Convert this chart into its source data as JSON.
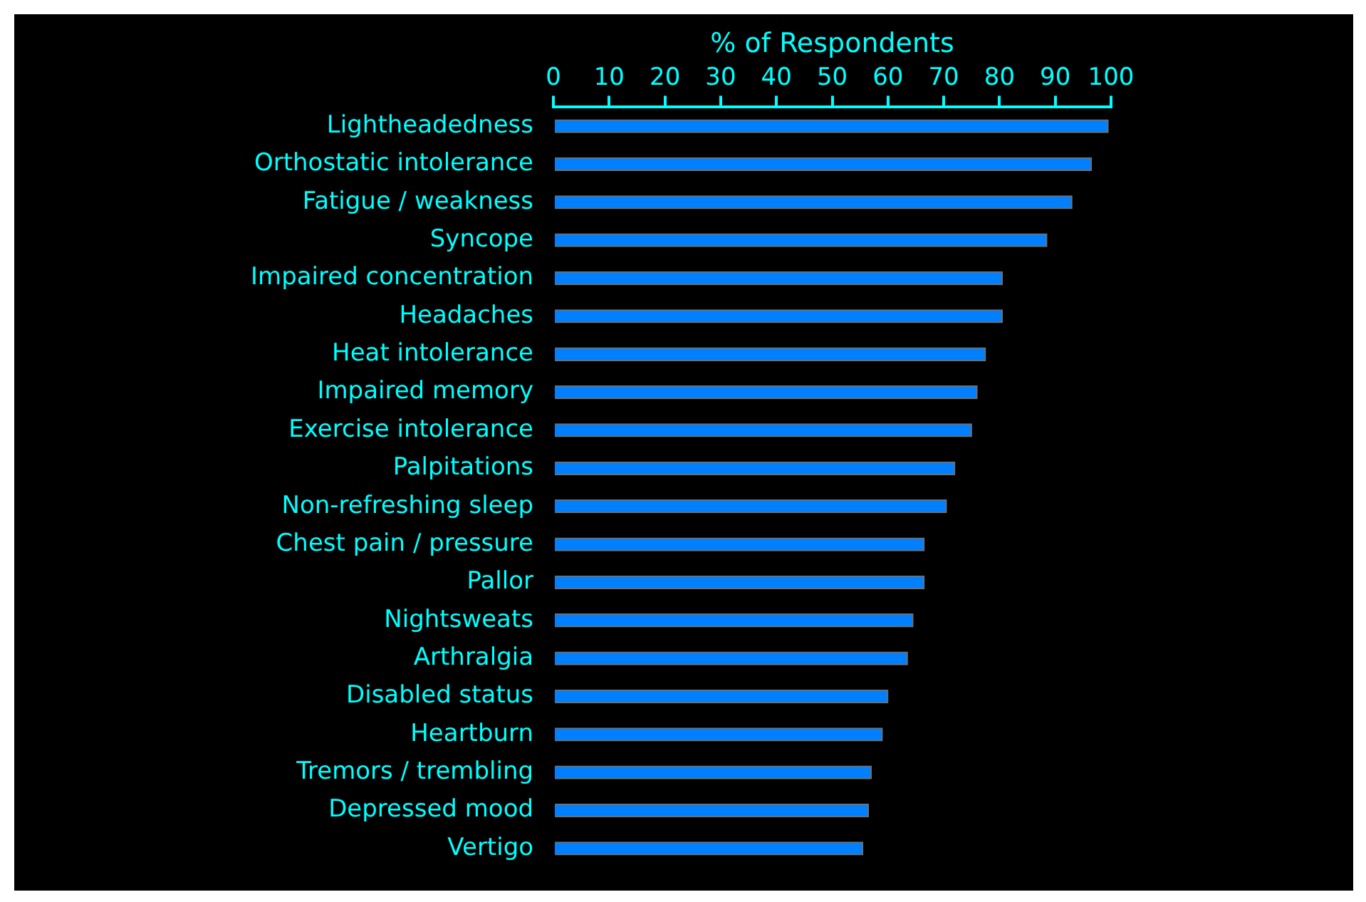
{
  "chart_data": {
    "type": "bar",
    "orientation": "horizontal",
    "xlabel": "% of Respondents",
    "categories": [
      "Lightheadedness",
      "Orthostatic intolerance",
      "Fatigue / weakness",
      "Syncope",
      "Impaired concentration",
      "Headaches",
      "Heat intolerance",
      "Impaired memory",
      "Exercise intolerance",
      "Palpitations",
      "Non-refreshing sleep",
      "Chest pain / pressure",
      "Pallor",
      "Nightsweats",
      "Arthralgia",
      "Disabled status",
      "Heartburn",
      "Tremors / trembling",
      "Depressed mood",
      "Vertigo"
    ],
    "values": [
      99.5,
      96.5,
      93,
      88.5,
      80.5,
      80.5,
      77.5,
      76,
      75,
      72,
      70.5,
      66.5,
      66.5,
      64.5,
      63.5,
      60,
      59,
      57,
      56.5,
      55.5
    ],
    "color": "#0080ff",
    "xlim": [
      0,
      100
    ],
    "xticks": [
      0,
      10,
      20,
      30,
      40,
      50,
      60,
      70,
      80,
      90,
      100
    ],
    "grid": false,
    "legend": false
  }
}
